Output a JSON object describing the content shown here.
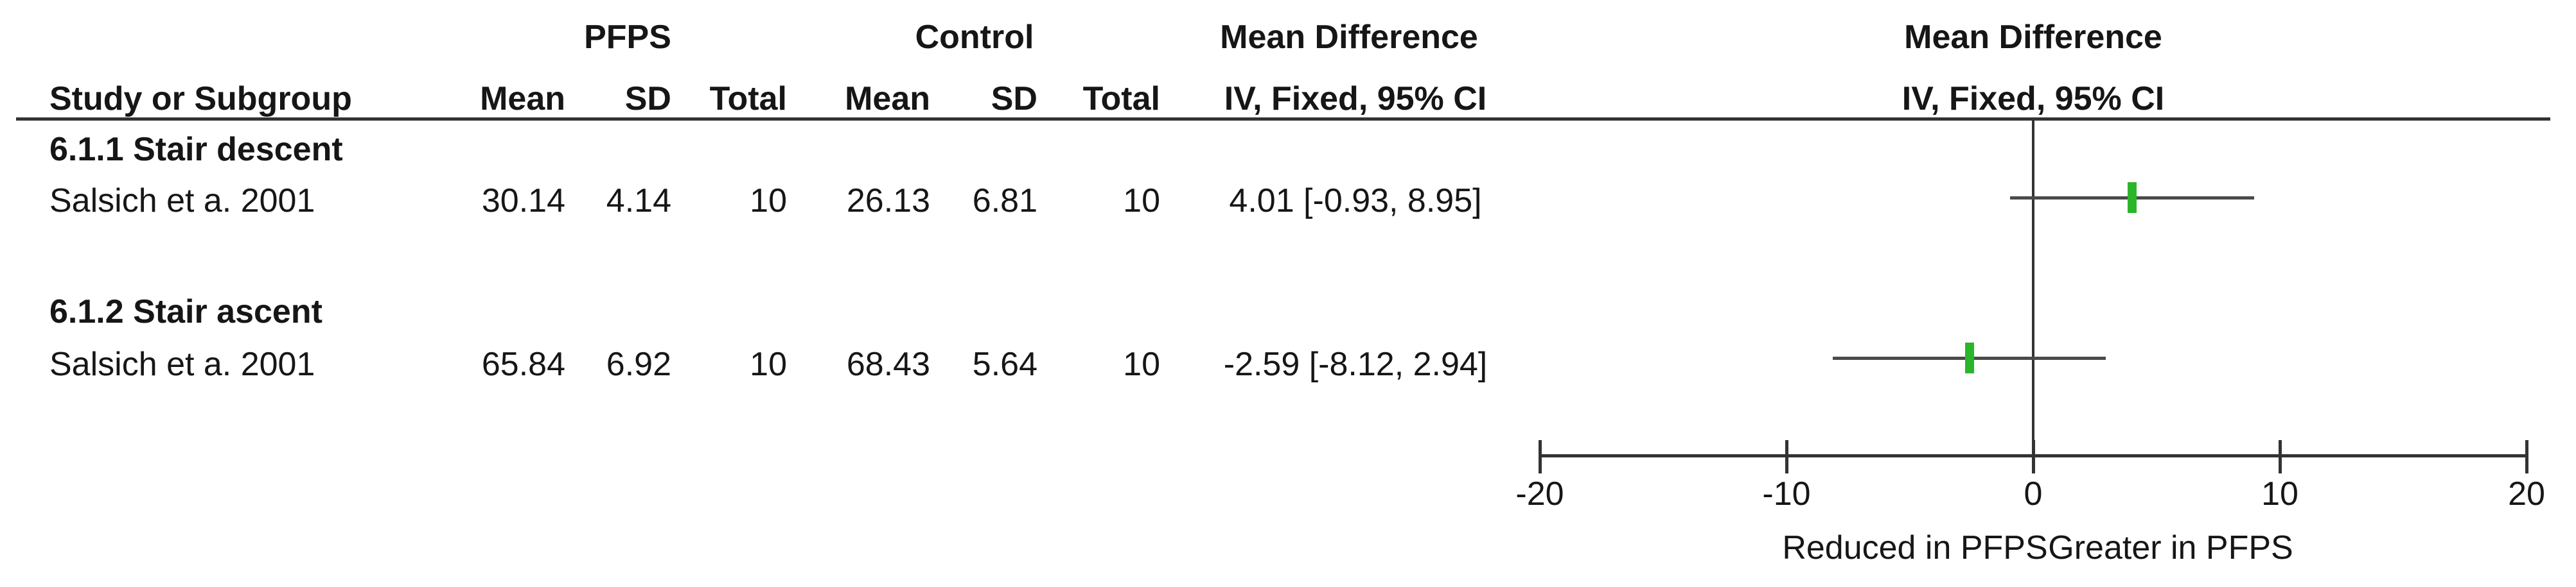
{
  "table": {
    "study_col_header": "Study or Subgroup",
    "groups": [
      {
        "label": "PFPS"
      },
      {
        "label": "Control"
      }
    ],
    "sub_headers": [
      "Mean",
      "SD",
      "Total",
      "Mean",
      "SD",
      "Total"
    ],
    "md_text_col": {
      "line1": "Mean Difference",
      "line2": "IV, Fixed, 95% CI"
    },
    "md_graph_col": {
      "line1": "Mean Difference",
      "line2": "IV, Fixed, 95% CI"
    }
  },
  "subgroups": [
    {
      "heading": "6.1.1 Stair descent",
      "studies": [
        {
          "name": "Salsich et a. 2001",
          "pfps_mean": "30.14",
          "pfps_sd": "4.14",
          "pfps_total": "10",
          "control_mean": "26.13",
          "control_sd": "6.81",
          "control_total": "10",
          "ci_text": "4.01 [-0.93, 8.95]",
          "est": 4.01,
          "lo": -0.93,
          "hi": 8.95
        }
      ]
    },
    {
      "heading": "6.1.2 Stair ascent",
      "studies": [
        {
          "name": "Salsich et a. 2001",
          "pfps_mean": "65.84",
          "pfps_sd": "6.92",
          "pfps_total": "10",
          "control_mean": "68.43",
          "control_sd": "5.64",
          "control_total": "10",
          "ci_text": "-2.59 [-8.12, 2.94]",
          "est": -2.59,
          "lo": -8.12,
          "hi": 2.94
        }
      ]
    }
  ],
  "axis": {
    "ticks": [
      "-20",
      "-10",
      "0",
      "10",
      "20"
    ],
    "tick_values": [
      -20,
      -10,
      0,
      10,
      20
    ],
    "min": -20,
    "max": 20
  },
  "footer": {
    "left_label": "Reduced in PFPS",
    "right_label": "Greater in PFPS"
  },
  "colors": {
    "marker_green": "#2bb52b",
    "ci_line_gray": "#4a4a4a",
    "axis_dark": "#333333",
    "text": "#161616"
  },
  "chart_data": {
    "type": "scatter",
    "style": "forest-plot",
    "effect_measure": "Mean Difference",
    "method": "IV, Fixed, 95% CI",
    "xlim": [
      -20,
      20
    ],
    "xticks": [
      -20,
      -10,
      0,
      10,
      20
    ],
    "x_axis_annotations": {
      "left_of_zero": "Reduced in PFPS",
      "right_of_zero": "Greater in PFPS"
    },
    "series": [
      {
        "subgroup": "6.1.1 Stair descent",
        "study": "Salsich et a. 2001",
        "mean_difference": 4.01,
        "ci_lower": -0.93,
        "ci_upper": 8.95,
        "pfps": {
          "mean": 30.14,
          "sd": 4.14,
          "total": 10
        },
        "control": {
          "mean": 26.13,
          "sd": 6.81,
          "total": 10
        }
      },
      {
        "subgroup": "6.1.2 Stair ascent",
        "study": "Salsich et a. 2001",
        "mean_difference": -2.59,
        "ci_lower": -8.12,
        "ci_upper": 2.94,
        "pfps": {
          "mean": 65.84,
          "sd": 6.92,
          "total": 10
        },
        "control": {
          "mean": 68.43,
          "sd": 5.64,
          "total": 10
        }
      }
    ],
    "marker_color": "#2bb52b",
    "grid": false,
    "legend": false
  }
}
